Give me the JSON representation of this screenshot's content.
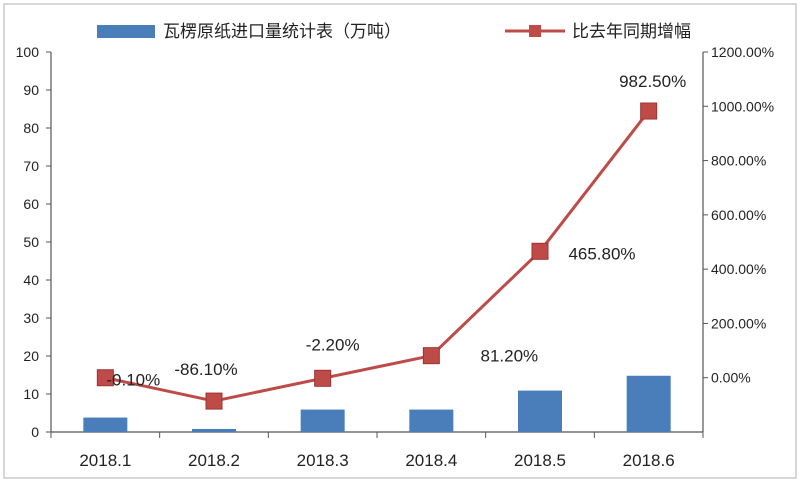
{
  "chart_data": {
    "type": "bar",
    "categories": [
      "2018.1",
      "2018.2",
      "2018.3",
      "2018.4",
      "2018.5",
      "2018.6"
    ],
    "series": [
      {
        "name": "瓦楞原纸进口量统计表（万吨）",
        "type": "bar",
        "axis": "left",
        "color": "#4a7ebb",
        "values": [
          3.8,
          0.8,
          5.9,
          5.9,
          10.9,
          14.8
        ]
      },
      {
        "name": "比去年同期增幅",
        "type": "line",
        "axis": "right",
        "color": "#be4b48",
        "values": [
          -0.1,
          -86.1,
          -2.2,
          81.2,
          465.8,
          982.5
        ],
        "labels": [
          "-0.10%",
          "-86.10%",
          "-2.20%",
          "81.20%",
          "465.80%",
          "982.50%"
        ]
      }
    ],
    "y_left": {
      "ylim": [
        0,
        100
      ],
      "ticks": [
        0,
        10,
        20,
        30,
        40,
        50,
        60,
        70,
        80,
        90,
        100
      ],
      "tick_labels": [
        "0",
        "10",
        "20",
        "30",
        "40",
        "50",
        "60",
        "70",
        "80",
        "90",
        "100"
      ]
    },
    "y_right": {
      "ylim": [
        -200,
        1200
      ],
      "ticks": [
        0,
        200,
        400,
        600,
        800,
        1000,
        1200
      ],
      "tick_labels": [
        "0.00%",
        "200.00%",
        "400.00%",
        "600.00%",
        "800.00%",
        "1000.00%",
        "1200.00%"
      ]
    },
    "legend_position": "top",
    "grid": false
  }
}
